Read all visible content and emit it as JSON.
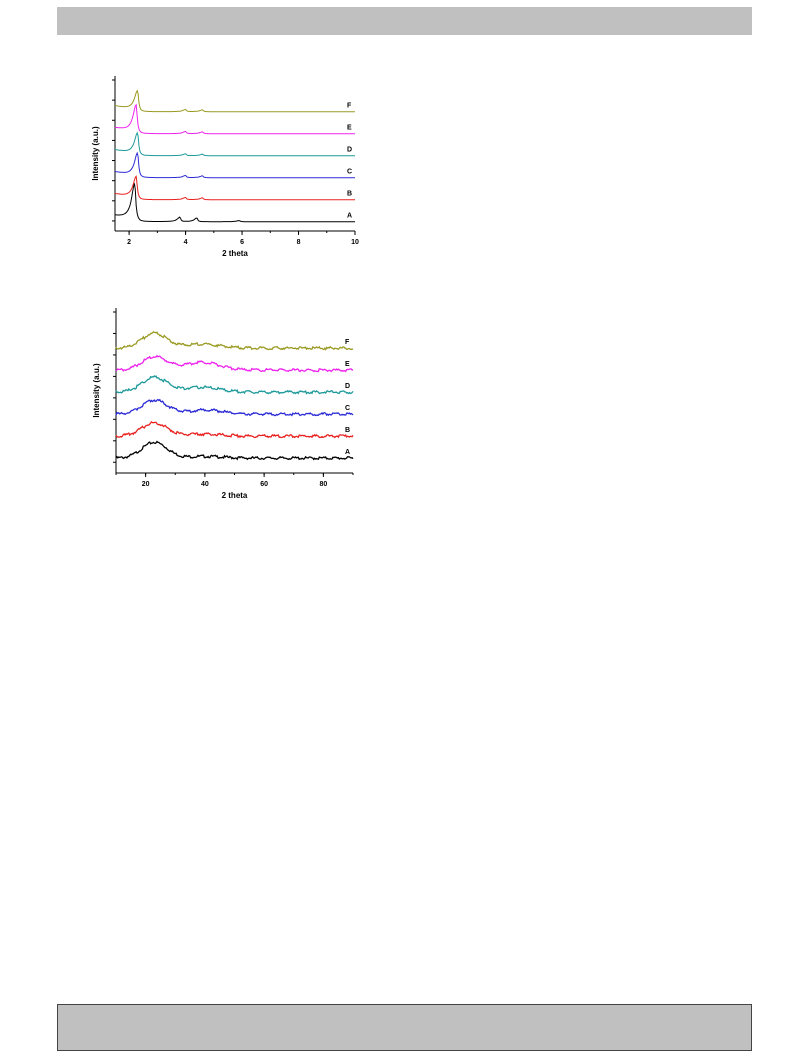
{
  "chart_data": [
    {
      "type": "line",
      "title": "",
      "xlabel": "2 theta",
      "ylabel": "Intensity (a.u.)",
      "xlim": [
        1.5,
        10
      ],
      "xticks": [
        2,
        4,
        6,
        8,
        10
      ],
      "legend": "labels at right end of each curve",
      "grid": false,
      "series": [
        {
          "name": "A",
          "color": "#000000",
          "peaks": [
            [
              2.2,
              1.0
            ],
            [
              3.8,
              0.12
            ],
            [
              4.4,
              0.1
            ],
            [
              5.9,
              0.03
            ]
          ]
        },
        {
          "name": "B",
          "color": "#e8211f",
          "peaks": [
            [
              2.25,
              0.6
            ],
            [
              4.0,
              0.06
            ],
            [
              4.6,
              0.05
            ]
          ]
        },
        {
          "name": "C",
          "color": "#2b2bd6",
          "peaks": [
            [
              2.3,
              0.65
            ],
            [
              4.0,
              0.06
            ],
            [
              4.6,
              0.05
            ]
          ]
        },
        {
          "name": "D",
          "color": "#1e9a9a",
          "peaks": [
            [
              2.3,
              0.6
            ],
            [
              4.0,
              0.05
            ],
            [
              4.6,
              0.04
            ]
          ]
        },
        {
          "name": "E",
          "color": "#ee22ee",
          "peaks": [
            [
              2.25,
              0.75
            ],
            [
              4.0,
              0.06
            ],
            [
              4.6,
              0.05
            ]
          ]
        },
        {
          "name": "F",
          "color": "#9a9a22",
          "peaks": [
            [
              2.3,
              0.55
            ],
            [
              4.0,
              0.06
            ],
            [
              4.6,
              0.05
            ]
          ]
        }
      ]
    },
    {
      "type": "line",
      "title": "",
      "xlabel": "2 theta",
      "ylabel": "Intensity (a.u.)",
      "xlim": [
        10,
        90
      ],
      "xticks": [
        20,
        40,
        60,
        80
      ],
      "legend": "labels at right end of each curve",
      "grid": false,
      "series": [
        {
          "name": "A",
          "color": "#000000",
          "peaks": [
            [
              23,
              0.45
            ],
            [
              40,
              0.05
            ]
          ]
        },
        {
          "name": "B",
          "color": "#e8211f",
          "peaks": [
            [
              23,
              0.38
            ],
            [
              40,
              0.06
            ]
          ]
        },
        {
          "name": "C",
          "color": "#2b2bd6",
          "peaks": [
            [
              23,
              0.4
            ],
            [
              40,
              0.12
            ]
          ]
        },
        {
          "name": "D",
          "color": "#1e9a9a",
          "peaks": [
            [
              23,
              0.42
            ],
            [
              39,
              0.14
            ]
          ]
        },
        {
          "name": "E",
          "color": "#ee22ee",
          "peaks": [
            [
              23,
              0.38
            ],
            [
              39,
              0.22
            ]
          ]
        },
        {
          "name": "F",
          "color": "#9a9a22",
          "peaks": [
            [
              23,
              0.42
            ],
            [
              39,
              0.12
            ]
          ]
        }
      ]
    }
  ]
}
